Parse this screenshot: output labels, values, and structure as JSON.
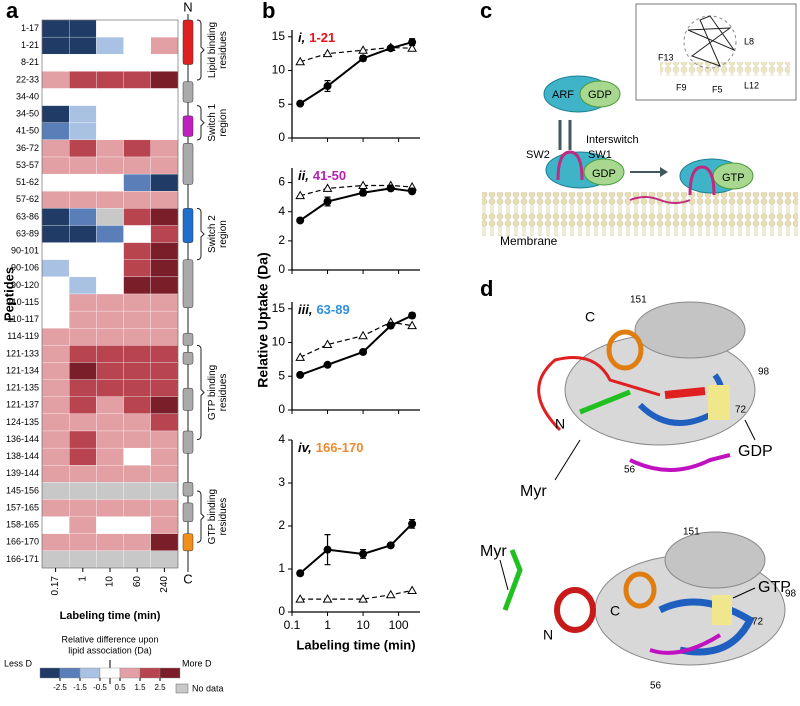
{
  "panel_labels": [
    "a",
    "b",
    "c",
    "d"
  ],
  "heatmap": {
    "y_label": "Peptides",
    "x_label": "Labeling time (min)",
    "timepoints": [
      "0.17",
      "1",
      "10",
      "60",
      "240"
    ],
    "peptides": [
      "1-17",
      "1-21",
      "8-21",
      "22-33",
      "34-40",
      "34-50",
      "41-50",
      "36-72",
      "53-57",
      "51-62",
      "57-62",
      "63-86",
      "63-89",
      "90-101",
      "90-106",
      "90-120",
      "110-115",
      "110-117",
      "114-119",
      "121-133",
      "121-134",
      "121-135",
      "121-137",
      "124-135",
      "136-144",
      "138-144",
      "139-144",
      "145-156",
      "157-165",
      "158-165",
      "166-170",
      "166-171"
    ],
    "cells": [
      [
        -3,
        -3,
        0,
        0,
        0
      ],
      [
        -3,
        -3,
        -1,
        0,
        1
      ],
      [
        0,
        0,
        0,
        0,
        0
      ],
      [
        1,
        2,
        2,
        2,
        3
      ],
      [
        0,
        0,
        0,
        0,
        0
      ],
      [
        -3,
        -1,
        0,
        0,
        0
      ],
      [
        -2,
        -1,
        0,
        0,
        0
      ],
      [
        1,
        2,
        1,
        2,
        1
      ],
      [
        1,
        1,
        1,
        1,
        1
      ],
      [
        0,
        0,
        0,
        -2,
        -3
      ],
      [
        1,
        1,
        1,
        1,
        1
      ],
      [
        -3,
        -2,
        null,
        2,
        3
      ],
      [
        -3,
        -3,
        -2,
        0,
        2
      ],
      [
        0,
        0,
        0,
        2,
        3
      ],
      [
        -1,
        0,
        0,
        2,
        3
      ],
      [
        0,
        -1,
        0,
        3,
        3
      ],
      [
        0,
        1,
        1,
        1,
        1
      ],
      [
        0,
        1,
        1,
        1,
        1
      ],
      [
        1,
        1,
        1,
        1,
        1
      ],
      [
        1,
        2,
        2,
        2,
        2
      ],
      [
        1,
        3,
        2,
        2,
        2
      ],
      [
        1,
        2,
        2,
        2,
        2
      ],
      [
        1,
        2,
        1,
        2,
        3
      ],
      [
        1,
        1,
        1,
        1,
        2
      ],
      [
        1,
        2,
        1,
        1,
        1
      ],
      [
        1,
        2,
        1,
        0,
        1
      ],
      [
        1,
        1,
        1,
        1,
        1
      ],
      [
        null,
        null,
        null,
        null,
        null
      ],
      [
        1,
        1,
        1,
        1,
        1
      ],
      [
        0,
        1,
        0,
        0,
        1
      ],
      [
        1,
        1,
        1,
        1,
        3
      ],
      [
        null,
        null,
        null,
        null,
        null
      ]
    ],
    "colors": [
      "#1f3b66",
      "#5a7fb8",
      "#a9c1e3",
      "#ffffff",
      "#e3a0a4",
      "#b84450",
      "#7a1f2a"
    ],
    "no_data_color": "#c8c8c8",
    "n_label": "N",
    "c_label": "C",
    "annotations": [
      [
        "Lipid binding",
        "residues"
      ],
      [
        "Switch 1",
        "region"
      ],
      [
        "Switch 2",
        "region"
      ],
      [
        "GTP binding",
        "residues"
      ],
      [
        "GTP binding",
        "residues"
      ]
    ],
    "legend": {
      "title": [
        "Relative difference upon",
        "lipid association (Da)"
      ],
      "less": "Less D",
      "more": "More D",
      "ticks": [
        -2.5,
        -1.5,
        -0.5,
        0.5,
        1.5,
        2.5
      ],
      "no_data": "No data"
    }
  },
  "panel_b": {
    "y_label": "Relative Uptake (Da)",
    "x_label": "Labeling time (min)",
    "x": [
      0.17,
      1,
      10,
      60,
      240
    ],
    "xlim": [
      0.1,
      400
    ],
    "xticks": [
      0.1,
      1,
      10,
      100
    ],
    "log_x": true
  },
  "chart_data": [
    {
      "type": "line",
      "numeral": "i,",
      "title": "1-21",
      "title_color": "#e8101a",
      "ylim": [
        0,
        16
      ],
      "yticks": [
        0,
        5,
        10,
        15
      ],
      "series": [
        {
          "color": "#000000",
          "marker": "circle",
          "dashed": false,
          "values": [
            5.1,
            7.7,
            11.8,
            13.3,
            14.2
          ],
          "errors": [
            0.2,
            0.8,
            0.4,
            0.3,
            0.5
          ]
        },
        {
          "color": "#000000",
          "marker": "triangle",
          "dashed": true,
          "values": [
            11.3,
            12.5,
            13.0,
            13.4,
            13.3
          ]
        }
      ]
    },
    {
      "type": "line",
      "numeral": "ii,",
      "title": "41-50",
      "title_color": "#b41fb4",
      "ylim": [
        0,
        7
      ],
      "yticks": [
        0,
        2,
        4,
        6
      ],
      "series": [
        {
          "color": "#000000",
          "marker": "circle",
          "dashed": false,
          "values": [
            3.4,
            4.7,
            5.3,
            5.6,
            5.4
          ],
          "errors": [
            0.1,
            0.3,
            0.2,
            0.1,
            0.1
          ]
        },
        {
          "color": "#000000",
          "marker": "triangle",
          "dashed": true,
          "values": [
            5.1,
            5.6,
            5.8,
            5.8,
            5.7
          ]
        }
      ]
    },
    {
      "type": "line",
      "numeral": "iii,",
      "title": "63-89",
      "title_color": "#2f8fe0",
      "ylim": [
        0,
        16
      ],
      "yticks": [
        0,
        5,
        10,
        15
      ],
      "series": [
        {
          "color": "#000000",
          "marker": "circle",
          "dashed": false,
          "values": [
            5.2,
            6.7,
            8.6,
            12.5,
            14.0
          ],
          "errors": [
            0.2,
            0.3,
            0.3,
            0.3,
            0.4
          ]
        },
        {
          "color": "#000000",
          "marker": "triangle",
          "dashed": true,
          "values": [
            7.8,
            9.7,
            11.0,
            13.0,
            12.5
          ]
        }
      ]
    },
    {
      "type": "line",
      "numeral": "iv,",
      "title": "166-170",
      "title_color": "#f08a30",
      "ylim": [
        0,
        4
      ],
      "yticks": [
        0,
        1,
        2,
        3,
        4
      ],
      "series": [
        {
          "color": "#000000",
          "marker": "circle",
          "dashed": false,
          "values": [
            0.9,
            1.45,
            1.35,
            1.55,
            2.05
          ],
          "errors": [
            0.05,
            0.35,
            0.1,
            0.05,
            0.1
          ]
        },
        {
          "color": "#000000",
          "marker": "triangle",
          "dashed": true,
          "values": [
            0.3,
            0.3,
            0.3,
            0.4,
            0.5
          ]
        }
      ]
    }
  ],
  "diagram_c": {
    "arf": "ARF",
    "gdp_top": "GDP",
    "interswitch": "Interswitch",
    "sw2": "SW2",
    "sw1": "SW1",
    "gdp_bottom": "GDP",
    "gtp": "GTP",
    "membrane": "Membrane",
    "wheel": {
      "f13": "F13",
      "l8": "L8",
      "f9": "F9",
      "f5": "F5",
      "l12": "L12"
    }
  },
  "structure_d": {
    "top": {
      "n151": "151",
      "c": "C",
      "n98": "98",
      "n": "N",
      "n72": "72",
      "myr": "Myr",
      "n56": "56",
      "gdp": "GDP"
    },
    "bottom": {
      "myr": "Myr",
      "n151": "151",
      "c": "C",
      "n98": "98",
      "n": "N",
      "gtp": "GTP",
      "n72": "72",
      "n56": "56"
    }
  }
}
